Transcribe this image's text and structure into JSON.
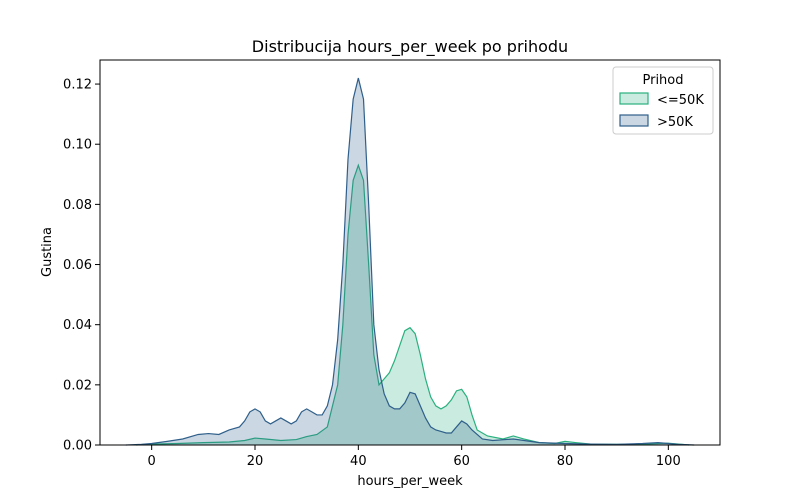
{
  "chart_data": {
    "type": "area",
    "title": "Distribucija hours_per_week po prihodu",
    "xlabel": "hours_per_week",
    "ylabel": "Gustina",
    "xlim": [
      -10,
      110
    ],
    "ylim": [
      0,
      0.128
    ],
    "x_ticks": [
      0,
      20,
      40,
      60,
      80,
      100
    ],
    "x_tick_labels": [
      "0",
      "20",
      "40",
      "60",
      "80",
      "100"
    ],
    "y_ticks": [
      0,
      0.02,
      0.04,
      0.06,
      0.08,
      0.1,
      0.12
    ],
    "y_tick_labels": [
      "0.00",
      "0.02",
      "0.04",
      "0.06",
      "0.08",
      "0.10",
      "0.12"
    ],
    "grid": false,
    "legend": {
      "title": "Prihod",
      "placement": "top-right"
    },
    "series": [
      {
        "name": "<=50K",
        "color": "#2ab07f",
        "fill_color": "#c7ecd9",
        "x": [
          -3,
          0,
          5,
          10,
          15,
          18,
          20,
          22,
          25,
          28,
          30,
          32,
          34,
          36,
          37,
          38,
          39,
          40,
          41,
          42,
          43,
          44,
          45,
          46,
          47,
          48,
          49,
          50,
          51,
          52,
          53,
          54,
          55,
          56,
          57,
          58,
          59,
          60,
          61,
          62,
          63,
          65,
          68,
          70,
          72,
          75,
          78,
          80,
          82,
          85,
          90,
          95,
          98,
          100,
          102,
          104
        ],
        "y": [
          0,
          0.0003,
          0.0005,
          0.0008,
          0.001,
          0.0015,
          0.0023,
          0.002,
          0.0015,
          0.0018,
          0.0028,
          0.0035,
          0.006,
          0.02,
          0.04,
          0.07,
          0.088,
          0.093,
          0.088,
          0.06,
          0.03,
          0.02,
          0.022,
          0.024,
          0.028,
          0.033,
          0.038,
          0.039,
          0.037,
          0.03,
          0.022,
          0.016,
          0.013,
          0.012,
          0.013,
          0.015,
          0.018,
          0.0185,
          0.016,
          0.01,
          0.005,
          0.003,
          0.002,
          0.003,
          0.002,
          0.0008,
          0.0005,
          0.0012,
          0.0008,
          0.0003,
          0.0002,
          0.0003,
          0.0005,
          0.0006,
          0.0003,
          0
        ]
      },
      {
        "name": ">50K",
        "color": "#2f5f8a",
        "fill_color": "#b7c9d6",
        "x": [
          -5,
          -2,
          0,
          3,
          6,
          9,
          11,
          13,
          15,
          17,
          18,
          19,
          20,
          21,
          22,
          23,
          24,
          25,
          26,
          27,
          28,
          29,
          30,
          31,
          32,
          33,
          34,
          35,
          36,
          37,
          38,
          39,
          40,
          41,
          42,
          43,
          44,
          45,
          46,
          47,
          48,
          49,
          50,
          51,
          52,
          53,
          54,
          55,
          56,
          57,
          58,
          59,
          60,
          61,
          62,
          64,
          66,
          70,
          75,
          80,
          85,
          90,
          95,
          98,
          100,
          102,
          105
        ],
        "y": [
          0,
          0.0002,
          0.0005,
          0.0012,
          0.002,
          0.0035,
          0.0038,
          0.0035,
          0.005,
          0.006,
          0.008,
          0.011,
          0.012,
          0.011,
          0.008,
          0.007,
          0.008,
          0.009,
          0.008,
          0.007,
          0.008,
          0.011,
          0.012,
          0.011,
          0.01,
          0.01,
          0.013,
          0.02,
          0.035,
          0.06,
          0.095,
          0.115,
          0.122,
          0.115,
          0.08,
          0.04,
          0.025,
          0.017,
          0.013,
          0.012,
          0.012,
          0.014,
          0.0175,
          0.017,
          0.013,
          0.009,
          0.006,
          0.005,
          0.0045,
          0.004,
          0.004,
          0.006,
          0.008,
          0.007,
          0.005,
          0.002,
          0.0015,
          0.002,
          0.0008,
          0.0005,
          0.0003,
          0.0002,
          0.0005,
          0.0008,
          0.0005,
          0.0002,
          0
        ]
      }
    ]
  }
}
